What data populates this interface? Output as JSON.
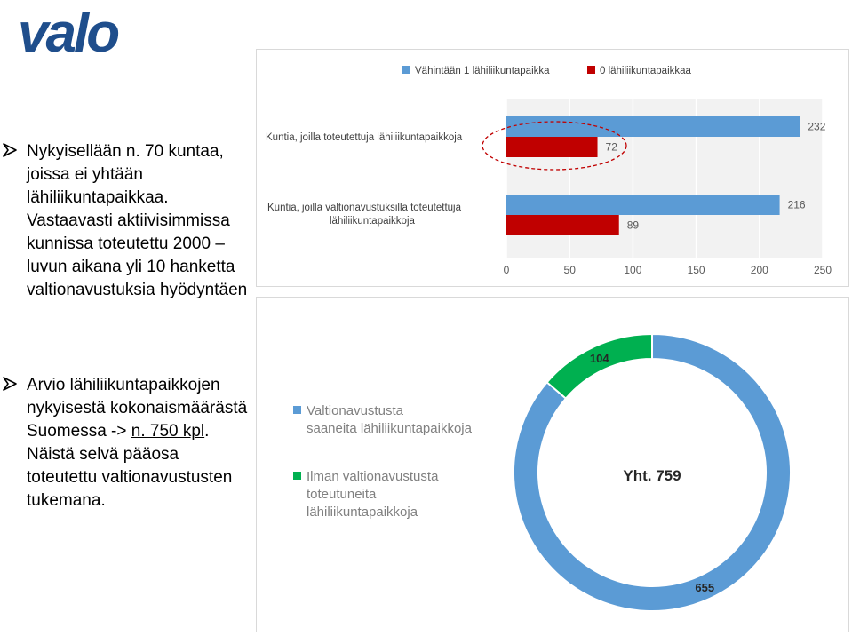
{
  "logo": {
    "text": "valo",
    "color": "#1f4e8c"
  },
  "bullets": [
    {
      "text": "Nykyisellään n. 70 kuntaa, joissa ei yhtään lähiliikuntapaikkaa. Vastaavasti aktiivisimmissa kunnissa toteutettu 2000 –luvun aikana yli 10 hanketta valtionavustuksia hyödyntäen"
    },
    {
      "before": "Arvio lähiliikuntapaikkojen nykyisestä kokonaismäärästä Suomessa -> ",
      "underlined": "n. 750 kpl",
      "after": ". Näistä selvä pääosa toteutettu valtionavustusten tukemana."
    }
  ],
  "chart_data": [
    {
      "type": "bar",
      "orientation": "horizontal",
      "categories": [
        "Kuntia, joilla toteutettuja lähiliikuntapaikkoja",
        "Kuntia, joilla valtionavustuksilla toteutettuja lähiliikuntapaikkoja"
      ],
      "series": [
        {
          "name": "Vähintään 1 lähiliikuntapaikka",
          "values": [
            232,
            216
          ],
          "color": "#5b9bd5"
        },
        {
          "name": "0 lähiliikuntapaikkaa",
          "values": [
            72,
            89
          ],
          "color": "#c00000"
        }
      ],
      "xlim": [
        0,
        250
      ],
      "xticks": [
        0,
        50,
        100,
        150,
        200,
        250
      ],
      "grid": true,
      "legend": "top",
      "annotation": "dashed red ellipse around first category"
    },
    {
      "type": "pie",
      "style": "donut",
      "center_label": "Yht. 759",
      "slices": [
        {
          "name": "Valtionavustusta saaneita lähiliikuntapaikkoja",
          "value": 655,
          "color": "#5b9bd5"
        },
        {
          "name": "Ilman valtionavustusta toteutuneita lähiliikuntapaikkoja",
          "value": 104,
          "color": "#00b050"
        }
      ],
      "legend": "left"
    }
  ]
}
